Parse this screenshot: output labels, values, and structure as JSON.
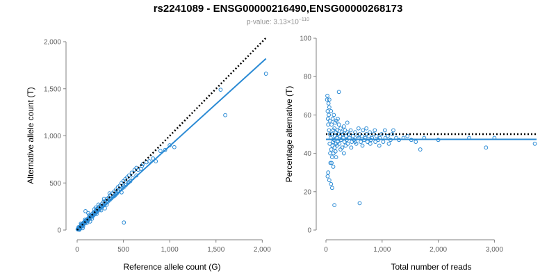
{
  "title": "rs2241089 - ENSG00000216490,ENSG00000268173",
  "subtitle": {
    "prefix": "p-value: 3.13×10",
    "exponent": "−110"
  },
  "colors": {
    "points": "#2a8ad4",
    "fit": "#2a8ad4",
    "expected": "#000000",
    "axis": "#808080"
  },
  "chart_data": [
    {
      "type": "scatter",
      "xlabel": "Reference allele count (G)",
      "ylabel": "Alternative allele count (T)",
      "xlim": [
        0,
        2050
      ],
      "ylim": [
        0,
        2000
      ],
      "xticks": [
        0,
        500,
        1000,
        1500,
        2000
      ],
      "xtick_labels": [
        "0",
        "500",
        "1,000",
        "1,500",
        "2,000"
      ],
      "yticks": [
        0,
        500,
        1000,
        1500,
        2000
      ],
      "ytick_labels": [
        "0",
        "500",
        "1,000",
        "1,500",
        "2,000"
      ],
      "grid": false,
      "expected_line": {
        "style": "dotted",
        "x": [
          0,
          2040
        ],
        "y": [
          0,
          2040
        ]
      },
      "fit_line": {
        "style": "solid",
        "x": [
          0,
          2040
        ],
        "y": [
          0,
          1820
        ]
      },
      "points": [
        [
          5,
          8
        ],
        [
          8,
          12
        ],
        [
          10,
          6
        ],
        [
          12,
          15
        ],
        [
          15,
          10
        ],
        [
          18,
          22
        ],
        [
          20,
          14
        ],
        [
          22,
          25
        ],
        [
          25,
          20
        ],
        [
          28,
          30
        ],
        [
          30,
          18
        ],
        [
          33,
          35
        ],
        [
          35,
          28
        ],
        [
          38,
          40
        ],
        [
          40,
          32
        ],
        [
          42,
          45
        ],
        [
          45,
          38
        ],
        [
          48,
          52
        ],
        [
          50,
          40
        ],
        [
          52,
          48
        ],
        [
          55,
          60
        ],
        [
          58,
          50
        ],
        [
          60,
          55
        ],
        [
          62,
          70
        ],
        [
          65,
          58
        ],
        [
          68,
          75
        ],
        [
          70,
          62
        ],
        [
          72,
          80
        ],
        [
          75,
          68
        ],
        [
          78,
          85
        ],
        [
          80,
          72
        ],
        [
          85,
          90
        ],
        [
          88,
          78
        ],
        [
          90,
          100
        ],
        [
          95,
          85
        ],
        [
          98,
          105
        ],
        [
          100,
          92
        ],
        [
          105,
          110
        ],
        [
          110,
          98
        ],
        [
          115,
          120
        ],
        [
          120,
          105
        ],
        [
          125,
          130
        ],
        [
          130,
          115
        ],
        [
          135,
          140
        ],
        [
          140,
          125
        ],
        [
          145,
          150
        ],
        [
          150,
          135
        ],
        [
          155,
          160
        ],
        [
          160,
          145
        ],
        [
          165,
          170
        ],
        [
          170,
          150
        ],
        [
          175,
          185
        ],
        [
          180,
          160
        ],
        [
          185,
          190
        ],
        [
          190,
          170
        ],
        [
          195,
          200
        ],
        [
          200,
          180
        ],
        [
          205,
          210
        ],
        [
          210,
          190
        ],
        [
          215,
          225
        ],
        [
          220,
          200
        ],
        [
          228,
          235
        ],
        [
          235,
          215
        ],
        [
          240,
          250
        ],
        [
          248,
          225
        ],
        [
          255,
          260
        ],
        [
          262,
          240
        ],
        [
          270,
          280
        ],
        [
          278,
          255
        ],
        [
          285,
          300
        ],
        [
          295,
          265
        ],
        [
          300,
          310
        ],
        [
          310,
          285
        ],
        [
          320,
          330
        ],
        [
          330,
          300
        ],
        [
          340,
          345
        ],
        [
          350,
          315
        ],
        [
          360,
          370
        ],
        [
          370,
          335
        ],
        [
          380,
          390
        ],
        [
          390,
          355
        ],
        [
          400,
          410
        ],
        [
          410,
          370
        ],
        [
          420,
          430
        ],
        [
          430,
          390
        ],
        [
          440,
          455
        ],
        [
          450,
          410
        ],
        [
          460,
          470
        ],
        [
          470,
          430
        ],
        [
          480,
          500
        ],
        [
          490,
          445
        ],
        [
          500,
          520
        ],
        [
          510,
          460
        ],
        [
          520,
          540
        ],
        [
          530,
          480
        ],
        [
          540,
          560
        ],
        [
          550,
          500
        ],
        [
          560,
          580
        ],
        [
          575,
          520
        ],
        [
          590,
          610
        ],
        [
          600,
          550
        ],
        [
          620,
          640
        ],
        [
          640,
          580
        ],
        [
          660,
          640
        ],
        [
          690,
          650
        ],
        [
          710,
          700
        ],
        [
          750,
          720
        ],
        [
          780,
          730
        ],
        [
          820,
          760
        ],
        [
          850,
          730
        ],
        [
          900,
          840
        ],
        [
          950,
          850
        ],
        [
          1000,
          900
        ],
        [
          1050,
          880
        ],
        [
          120,
          180
        ],
        [
          60,
          20
        ],
        [
          40,
          70
        ],
        [
          25,
          3
        ],
        [
          90,
          200
        ],
        [
          140,
          90
        ],
        [
          200,
          240
        ],
        [
          300,
          230
        ],
        [
          350,
          390
        ],
        [
          420,
          380
        ],
        [
          480,
          400
        ],
        [
          505,
          80
        ],
        [
          640,
          660
        ],
        [
          1550,
          1490
        ],
        [
          1600,
          1220
        ],
        [
          2040,
          1660
        ],
        [
          15,
          30
        ],
        [
          30,
          12
        ],
        [
          45,
          60
        ],
        [
          65,
          40
        ],
        [
          85,
          110
        ],
        [
          105,
          75
        ],
        [
          130,
          160
        ],
        [
          160,
          120
        ],
        [
          185,
          220
        ],
        [
          210,
          170
        ],
        [
          230,
          270
        ],
        [
          260,
          210
        ],
        [
          290,
          330
        ],
        [
          320,
          270
        ],
        [
          360,
          330
        ],
        [
          400,
          360
        ],
        [
          440,
          410
        ],
        [
          500,
          470
        ],
        [
          560,
          510
        ],
        [
          700,
          680
        ]
      ]
    },
    {
      "type": "scatter",
      "xlabel": "Total number of reads",
      "ylabel": "Percentage alternative (T)",
      "xlim": [
        0,
        3750
      ],
      "ylim": [
        0,
        100
      ],
      "xticks": [
        0,
        1000,
        2000,
        3000
      ],
      "xtick_labels": [
        "0",
        "1,000",
        "2,000",
        "3,000"
      ],
      "yticks": [
        0,
        20,
        40,
        60,
        80,
        100
      ],
      "ytick_labels": [
        "0",
        "20",
        "40",
        "60",
        "80",
        "100"
      ],
      "grid": false,
      "expected_line": {
        "style": "dotted",
        "x": [
          0,
          3750
        ],
        "y": [
          50,
          50
        ]
      },
      "fit_line": {
        "style": "solid",
        "x": [
          0,
          3750
        ],
        "y": [
          47.3,
          47.3
        ]
      },
      "points": [
        [
          20,
          68
        ],
        [
          25,
          70
        ],
        [
          30,
          62
        ],
        [
          35,
          58
        ],
        [
          40,
          55
        ],
        [
          45,
          66
        ],
        [
          50,
          60
        ],
        [
          55,
          52
        ],
        [
          60,
          64
        ],
        [
          65,
          45
        ],
        [
          70,
          57
        ],
        [
          75,
          40
        ],
        [
          80,
          35
        ],
        [
          85,
          48
        ],
        [
          90,
          62
        ],
        [
          95,
          42
        ],
        [
          100,
          55
        ],
        [
          105,
          50
        ],
        [
          110,
          38
        ],
        [
          115,
          44
        ],
        [
          120,
          58
        ],
        [
          125,
          46
        ],
        [
          130,
          52
        ],
        [
          135,
          40
        ],
        [
          140,
          60
        ],
        [
          145,
          47
        ],
        [
          150,
          53
        ],
        [
          155,
          43
        ],
        [
          160,
          49
        ],
        [
          165,
          56
        ],
        [
          170,
          41
        ],
        [
          175,
          51
        ],
        [
          180,
          45
        ],
        [
          185,
          57
        ],
        [
          190,
          48
        ],
        [
          195,
          44
        ],
        [
          200,
          52
        ],
        [
          210,
          46
        ],
        [
          220,
          50
        ],
        [
          230,
          55
        ],
        [
          240,
          45
        ],
        [
          250,
          49
        ],
        [
          260,
          53
        ],
        [
          270,
          47
        ],
        [
          280,
          51
        ],
        [
          290,
          43
        ],
        [
          300,
          50
        ],
        [
          310,
          48
        ],
        [
          320,
          54
        ],
        [
          330,
          46
        ],
        [
          340,
          52
        ],
        [
          350,
          44
        ],
        [
          360,
          49
        ],
        [
          370,
          47
        ],
        [
          380,
          51
        ],
        [
          390,
          45
        ],
        [
          400,
          50
        ],
        [
          420,
          48
        ],
        [
          440,
          52
        ],
        [
          460,
          46
        ],
        [
          480,
          49
        ],
        [
          500,
          47
        ],
        [
          520,
          51
        ],
        [
          540,
          45
        ],
        [
          560,
          49
        ],
        [
          580,
          48
        ],
        [
          600,
          50
        ],
        [
          620,
          46
        ],
        [
          640,
          49
        ],
        [
          660,
          52
        ],
        [
          680,
          47
        ],
        [
          700,
          48
        ],
        [
          720,
          50
        ],
        [
          740,
          46
        ],
        [
          760,
          49
        ],
        [
          780,
          51
        ],
        [
          800,
          47
        ],
        [
          820,
          48
        ],
        [
          850,
          50
        ],
        [
          880,
          46
        ],
        [
          900,
          49
        ],
        [
          930,
          47
        ],
        [
          960,
          48
        ],
        [
          990,
          50
        ],
        [
          1020,
          46
        ],
        [
          1060,
          48
        ],
        [
          1100,
          49
        ],
        [
          1150,
          47
        ],
        [
          1200,
          52
        ],
        [
          1250,
          48
        ],
        [
          1300,
          47
        ],
        [
          1380,
          48
        ],
        [
          1450,
          49
        ],
        [
          1520,
          47
        ],
        [
          1600,
          46
        ],
        [
          1680,
          42
        ],
        [
          1750,
          48
        ],
        [
          2000,
          47
        ],
        [
          2550,
          48
        ],
        [
          2850,
          43
        ],
        [
          3000,
          48
        ],
        [
          3720,
          45
        ],
        [
          30,
          28
        ],
        [
          60,
          26
        ],
        [
          90,
          24
        ],
        [
          110,
          22
        ],
        [
          150,
          13
        ],
        [
          600,
          14
        ],
        [
          230,
          72
        ],
        [
          60,
          68
        ],
        [
          100,
          35
        ],
        [
          130,
          33
        ],
        [
          40,
          30
        ],
        [
          180,
          38
        ],
        [
          70,
          50
        ],
        [
          210,
          58
        ],
        [
          260,
          42
        ],
        [
          320,
          40
        ],
        [
          380,
          56
        ],
        [
          450,
          43
        ],
        [
          520,
          46
        ],
        [
          580,
          53
        ],
        [
          650,
          44
        ],
        [
          720,
          53
        ],
        [
          790,
          45
        ],
        [
          870,
          52
        ],
        [
          950,
          44
        ],
        [
          1050,
          52
        ],
        [
          1120,
          45
        ],
        [
          1180,
          50
        ]
      ]
    }
  ]
}
